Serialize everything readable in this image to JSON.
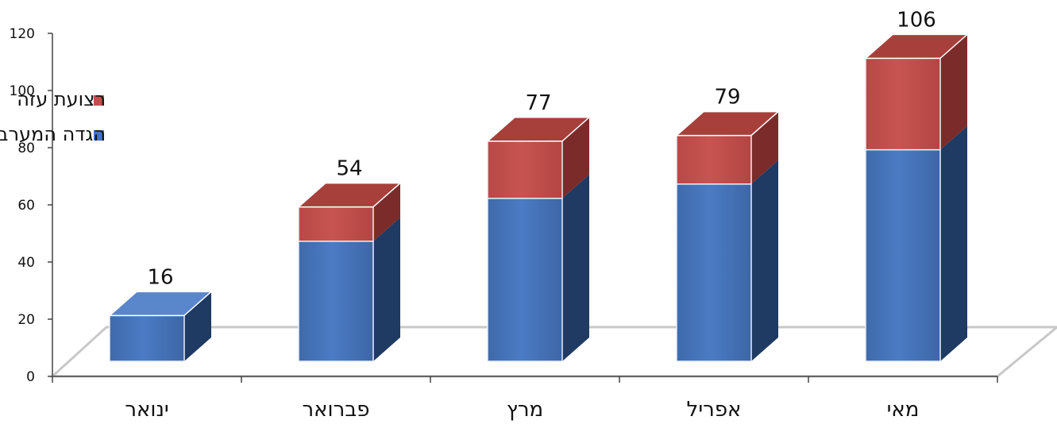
{
  "chart_data": {
    "type": "bar",
    "stacked": true,
    "three_d": true,
    "categories": [
      "ינואר",
      "פברואר",
      "מרץ",
      "אפריל",
      "מאי"
    ],
    "series": [
      {
        "name": "הגדה המערבית",
        "color": "#4472c4",
        "values": [
          16,
          42,
          57,
          62,
          74
        ]
      },
      {
        "name": "רצועת עזה",
        "color": "#c0504d",
        "values": [
          0,
          12,
          20,
          17,
          32
        ]
      }
    ],
    "totals": [
      16,
      54,
      77,
      79,
      106
    ],
    "ylim": [
      0,
      120
    ],
    "yticks": [
      0,
      20,
      40,
      60,
      80,
      100,
      120
    ],
    "legend_position": "top-left",
    "grid": false
  }
}
